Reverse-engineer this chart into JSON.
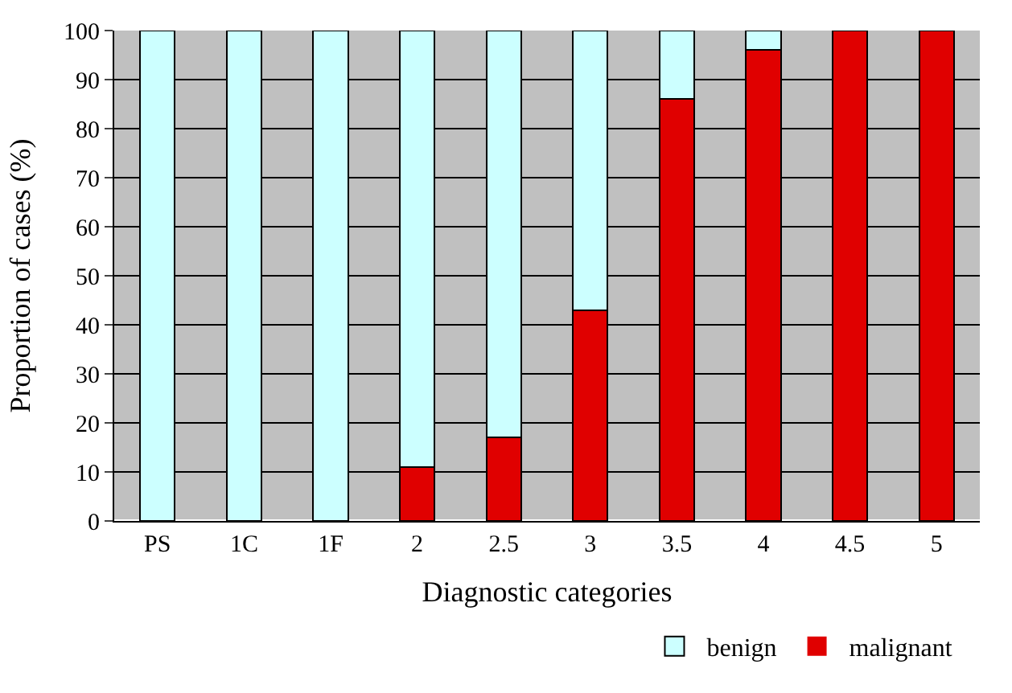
{
  "chart_data": {
    "type": "bar",
    "stacked": true,
    "xlabel": "Diagnostic categories",
    "ylabel": "Proportion of cases (%)",
    "categories": [
      "PS",
      "1C",
      "1F",
      "2",
      "2.5",
      "3",
      "3.5",
      "4",
      "4.5",
      "5"
    ],
    "series": [
      {
        "name": "malignant",
        "color": "#e00000",
        "values": [
          0,
          0,
          0,
          11,
          17,
          43,
          86,
          96,
          100,
          100
        ]
      },
      {
        "name": "benign",
        "color": "#ccffff",
        "values": [
          100,
          100,
          100,
          89,
          83,
          57,
          14,
          4,
          0,
          0
        ]
      }
    ],
    "ylim": [
      0,
      100
    ],
    "yticks": [
      0,
      10,
      20,
      30,
      40,
      50,
      60,
      70,
      80,
      90,
      100
    ],
    "grid": "y",
    "legend": "bottom"
  }
}
